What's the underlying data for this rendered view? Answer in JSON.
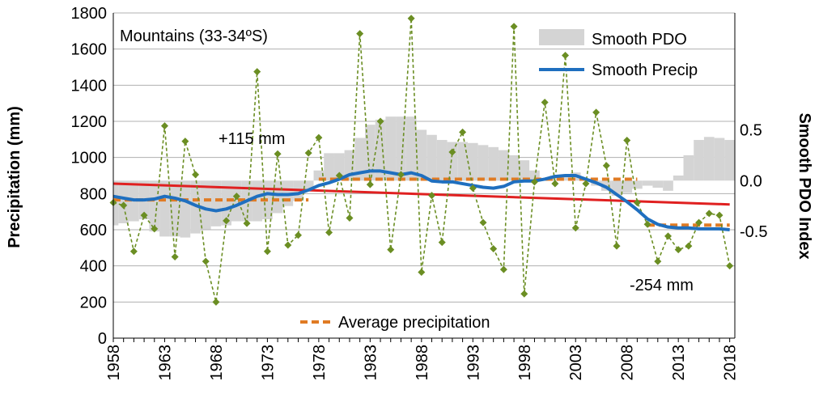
{
  "chart_data": {
    "type": "line",
    "title": "Mountains (33-34ºS)",
    "ylabel": "Precipitation (mm)",
    "y2label": "Smooth PDO Index",
    "xlim": [
      1958,
      2018.5
    ],
    "ylim": [
      0,
      1800
    ],
    "y2lim": [
      -1.55,
      1.65
    ],
    "x_ticks": [
      "1958",
      "1963",
      "1968",
      "1973",
      "1978",
      "1983",
      "1988",
      "1993",
      "1998",
      "2003",
      "2008",
      "2013",
      "2018"
    ],
    "y_ticks": [
      "0",
      "200",
      "400",
      "600",
      "800",
      "1000",
      "1200",
      "1400",
      "1600",
      "1800"
    ],
    "y2_ticks": [
      "0.5",
      "0.0",
      "-0.5"
    ],
    "y2_tick_values": [
      0.5,
      0.0,
      -0.5
    ],
    "annotations": {
      "increase": "+115 mm",
      "decrease": "-254 mm"
    },
    "legend": {
      "smooth_pdo": "Smooth PDO",
      "smooth_precip": "Smooth Precip",
      "average_precip": "Average precipitation"
    },
    "colors": {
      "precip": "#6b8e23",
      "smooth_precip": "#1f6fbf",
      "smooth_pdo": "#d4d4d4",
      "trend": "#e02020",
      "average": "#e07b24",
      "grid": "#b0b0b0"
    },
    "series": [
      {
        "name": "Annual precipitation",
        "x": [
          1958,
          1959,
          1960,
          1961,
          1962,
          1963,
          1964,
          1965,
          1966,
          1967,
          1968,
          1969,
          1970,
          1971,
          1972,
          1973,
          1974,
          1975,
          1976,
          1977,
          1978,
          1979,
          1980,
          1981,
          1982,
          1983,
          1984,
          1985,
          1986,
          1987,
          1988,
          1989,
          1990,
          1991,
          1992,
          1993,
          1994,
          1995,
          1996,
          1997,
          1998,
          1999,
          2000,
          2001,
          2002,
          2003,
          2004,
          2005,
          2006,
          2007,
          2008,
          2009,
          2010,
          2011,
          2012,
          2013,
          2014,
          2015,
          2016,
          2017,
          2018
        ],
        "values": [
          750,
          735,
          480,
          680,
          605,
          1175,
          450,
          1090,
          905,
          425,
          200,
          650,
          785,
          635,
          1475,
          480,
          1020,
          515,
          570,
          1025,
          1110,
          585,
          900,
          665,
          1685,
          850,
          1200,
          490,
          905,
          1770,
          365,
          790,
          530,
          1030,
          1140,
          830,
          640,
          495,
          380,
          1725,
          245,
          865,
          1305,
          855,
          1565,
          610,
          855,
          1250,
          955,
          510,
          1095,
          750,
          630,
          425,
          565,
          490,
          510,
          640,
          690,
          680,
          400
        ]
      },
      {
        "name": "Smooth Precip",
        "x": [
          1958,
          1959,
          1960,
          1961,
          1962,
          1963,
          1964,
          1965,
          1966,
          1967,
          1968,
          1969,
          1970,
          1971,
          1972,
          1973,
          1974,
          1975,
          1976,
          1977,
          1978,
          1979,
          1980,
          1981,
          1982,
          1983,
          1984,
          1985,
          1986,
          1987,
          1988,
          1989,
          1990,
          1991,
          1992,
          1993,
          1994,
          1995,
          1996,
          1997,
          1998,
          1999,
          2000,
          2001,
          2002,
          2003,
          2004,
          2005,
          2006,
          2007,
          2008,
          2009,
          2010,
          2011,
          2012,
          2013,
          2014,
          2015,
          2016,
          2017,
          2018
        ],
        "values": [
          785,
          775,
          765,
          765,
          770,
          785,
          775,
          760,
          735,
          715,
          705,
          715,
          735,
          760,
          785,
          800,
          795,
          795,
          800,
          820,
          845,
          860,
          880,
          905,
          915,
          925,
          925,
          915,
          905,
          915,
          900,
          870,
          865,
          865,
          855,
          845,
          835,
          830,
          840,
          865,
          870,
          870,
          880,
          895,
          900,
          900,
          880,
          860,
          835,
          795,
          755,
          710,
          660,
          630,
          615,
          610,
          610,
          605,
          605,
          605,
          600
        ]
      },
      {
        "name": "Linear trend",
        "x": [
          1958,
          2018
        ],
        "values": [
          855,
          740
        ]
      },
      {
        "name": "Average precipitation",
        "segments": [
          {
            "x": [
              1958,
              1977
            ],
            "value": 765
          },
          {
            "x": [
              1978,
              2009
            ],
            "value": 880
          },
          {
            "x": [
              2010,
              2018
            ],
            "value": 626
          }
        ]
      },
      {
        "name": "Smooth PDO",
        "x": [
          1958,
          1959,
          1960,
          1961,
          1962,
          1963,
          1964,
          1965,
          1966,
          1967,
          1968,
          1969,
          1970,
          1971,
          1972,
          1973,
          1974,
          1975,
          1976,
          1977,
          1978,
          1979,
          1980,
          1981,
          1982,
          1983,
          1984,
          1985,
          1986,
          1987,
          1988,
          1989,
          1990,
          1991,
          1992,
          1993,
          1994,
          1995,
          1996,
          1997,
          1998,
          1999,
          2000,
          2001,
          2002,
          2003,
          2004,
          2005,
          2006,
          2007,
          2008,
          2009,
          2010,
          2011,
          2012,
          2013,
          2014,
          2015,
          2016,
          2017,
          2018
        ],
        "values": [
          -0.44,
          -0.42,
          -0.4,
          -0.38,
          -0.5,
          -0.55,
          -0.55,
          -0.56,
          -0.52,
          -0.48,
          -0.45,
          -0.44,
          -0.4,
          -0.4,
          -0.4,
          -0.38,
          -0.32,
          -0.25,
          -0.2,
          -0.1,
          0.1,
          0.27,
          0.27,
          0.3,
          0.42,
          0.55,
          0.6,
          0.63,
          0.63,
          0.63,
          0.5,
          0.45,
          0.4,
          0.38,
          0.38,
          0.37,
          0.35,
          0.33,
          0.3,
          0.25,
          0.2,
          0.1,
          0.02,
          0.05,
          0.05,
          0.08,
          0.02,
          -0.05,
          -0.1,
          -0.15,
          -0.12,
          -0.08,
          -0.05,
          -0.07,
          -0.1,
          0.05,
          0.25,
          0.4,
          0.43,
          0.42,
          0.4
        ]
      }
    ]
  }
}
